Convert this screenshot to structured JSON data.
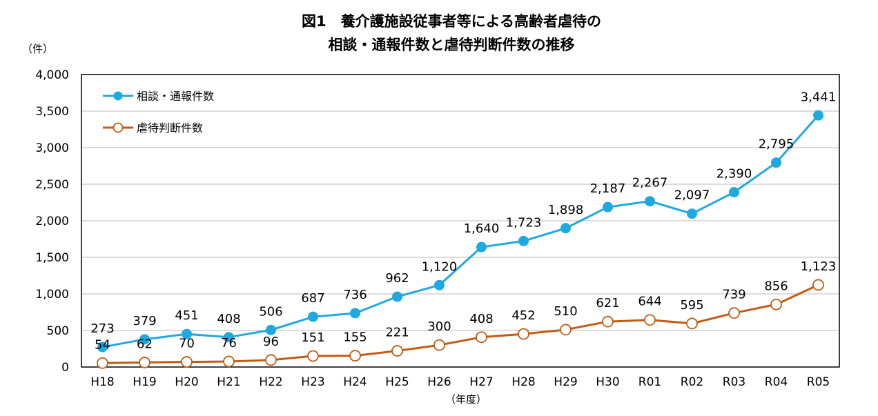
{
  "chart_data": {
    "type": "line",
    "title_line1": "図1　養介護施設従事者等による高齢者虐待の",
    "title_line2": "相談・通報件数と虐待判断件数の推移",
    "ylabel": "（件）",
    "xlabel": "（年度）",
    "ylim": [
      0,
      4000
    ],
    "yticks": [
      0,
      500,
      1000,
      1500,
      2000,
      2500,
      3000,
      3500,
      4000
    ],
    "ytick_labels": [
      "0",
      "500",
      "1,000",
      "1,500",
      "2,000",
      "2,500",
      "3,000",
      "3,500",
      "4,000"
    ],
    "categories": [
      "H18",
      "H19",
      "H20",
      "H21",
      "H22",
      "H23",
      "H24",
      "H25",
      "H26",
      "H27",
      "H28",
      "H29",
      "H30",
      "R01",
      "R02",
      "R03",
      "R04",
      "R05"
    ],
    "grid": true,
    "legend_position": "top-left",
    "series": [
      {
        "name": "相談・通報件数",
        "color": "#1fa9e1",
        "marker": "filled-circle",
        "values": [
          273,
          379,
          451,
          408,
          506,
          687,
          736,
          962,
          1120,
          1640,
          1723,
          1898,
          2187,
          2267,
          2097,
          2390,
          2795,
          3441
        ],
        "labels": [
          "273",
          "379",
          "451",
          "408",
          "506",
          "687",
          "736",
          "962",
          "1,120",
          "1,640",
          "1,723",
          "1,898",
          "2,187",
          "2,267",
          "2,097",
          "2,390",
          "2,795",
          "3,441"
        ]
      },
      {
        "name": "虐待判断件数",
        "color": "#c55a11",
        "marker": "hollow-circle",
        "values": [
          54,
          62,
          70,
          76,
          96,
          151,
          155,
          221,
          300,
          408,
          452,
          510,
          621,
          644,
          595,
          739,
          856,
          1123
        ],
        "labels": [
          "54",
          "62",
          "70",
          "76",
          "96",
          "151",
          "155",
          "221",
          "300",
          "408",
          "452",
          "510",
          "621",
          "644",
          "595",
          "739",
          "856",
          "1,123"
        ]
      }
    ]
  }
}
